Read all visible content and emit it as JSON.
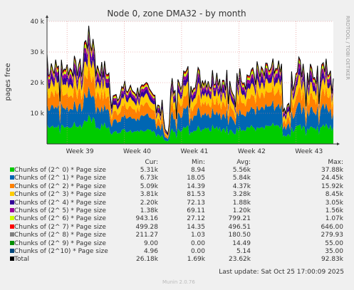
{
  "title": "Node 0, zone DMA32 - by month",
  "side_label": "RRDTOOL / TOBI OETIKER",
  "footer": "Munin 2.0.76",
  "last_update": "Last update: Sat Oct 25 17:00:09 2025",
  "columns": [
    "Cur:",
    "Min:",
    "Avg:",
    "Max:"
  ],
  "chart_data": {
    "type": "area",
    "title": "Node 0, zone DMA32 - by month",
    "ylabel": "pages free",
    "xlabel": "",
    "ylim": [
      0,
      40000
    ],
    "yticks": [
      {
        "value": 10000,
        "label": "10 k"
      },
      {
        "value": 20000,
        "label": "20 k"
      },
      {
        "value": 30000,
        "label": "30 k"
      },
      {
        "value": 40000,
        "label": "40 k"
      }
    ],
    "x_ticks": [
      "Week 39",
      "Week 40",
      "Week 41",
      "Week 42",
      "Week 43"
    ],
    "grid": true,
    "stacked": true,
    "series": [
      {
        "name": "Chunks of (2^ 0) * Page size",
        "color": "#00cc00",
        "cur": "5.31k",
        "min": "8.94",
        "avg": "5.56k",
        "max": "37.88k",
        "level": 5560
      },
      {
        "name": "Chunks of (2^ 1) * Page size",
        "color": "#0066b3",
        "cur": "6.73k",
        "min": "18.05",
        "avg": "5.84k",
        "max": "24.45k",
        "level": 5840
      },
      {
        "name": "Chunks of (2^ 2) * Page size",
        "color": "#ff8000",
        "cur": "5.09k",
        "min": "14.39",
        "avg": "4.37k",
        "max": "15.92k",
        "level": 4370
      },
      {
        "name": "Chunks of (2^ 3) * Page size",
        "color": "#ffcc00",
        "cur": "3.81k",
        "min": "81.53",
        "avg": "3.28k",
        "max": "8.45k",
        "level": 3280
      },
      {
        "name": "Chunks of (2^ 4) * Page size",
        "color": "#330099",
        "cur": "2.20k",
        "min": "72.13",
        "avg": "1.88k",
        "max": "3.05k",
        "level": 1880
      },
      {
        "name": "Chunks of (2^ 5) * Page size",
        "color": "#990099",
        "cur": "1.38k",
        "min": "69.11",
        "avg": "1.20k",
        "max": "1.56k",
        "level": 1200
      },
      {
        "name": "Chunks of (2^ 6) * Page size",
        "color": "#ccff00",
        "cur": "943.16",
        "min": "27.12",
        "avg": "799.21",
        "max": "1.07k",
        "level": 799
      },
      {
        "name": "Chunks of (2^ 7) * Page size",
        "color": "#ff0000",
        "cur": "499.28",
        "min": "14.35",
        "avg": "496.51",
        "max": "646.00",
        "level": 497
      },
      {
        "name": "Chunks of (2^ 8) * Page size",
        "color": "#808080",
        "cur": "211.27",
        "min": "1.03",
        "avg": "180.50",
        "max": "279.93",
        "level": 181
      },
      {
        "name": "Chunks of (2^ 9) * Page size",
        "color": "#008f00",
        "cur": "9.00",
        "min": "0.00",
        "avg": "14.49",
        "max": "55.00",
        "level": 14
      },
      {
        "name": "Chunks of (2^10) * Page size",
        "color": "#00487d",
        "cur": "4.96",
        "min": "0.00",
        "avg": "5.14",
        "max": "35.00",
        "level": 5
      }
    ],
    "total": {
      "name": "Total",
      "color": "#000000",
      "cur": "26.18k",
      "min": "1.69k",
      "avg": "23.62k",
      "max": "92.83k"
    }
  }
}
